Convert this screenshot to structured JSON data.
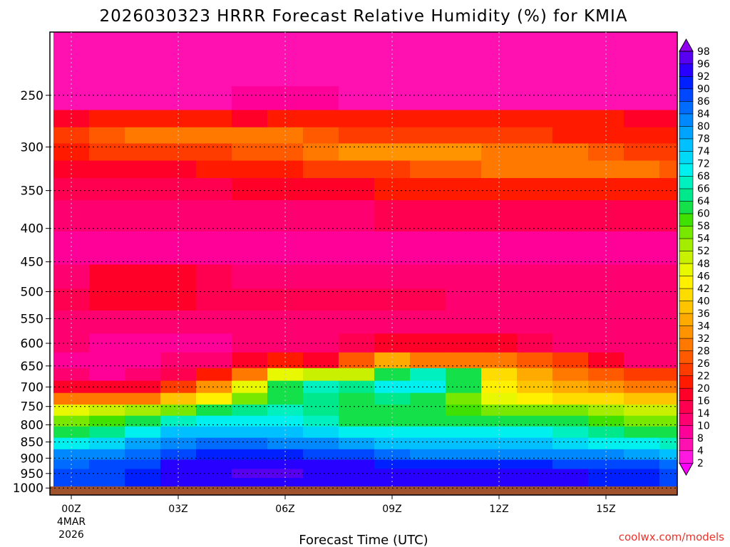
{
  "chart_data": {
    "type": "heatmap",
    "title": "2026030323 HRRR Forecast Relative Humidity (%) for KMIA",
    "xlabel": "Forecast Time (UTC)",
    "ylabel": "",
    "credit": "coolwx.com/models",
    "x_ticks": [
      {
        "hour": 0,
        "label": "00Z",
        "sub1": "4MAR",
        "sub2": "2026"
      },
      {
        "hour": 3,
        "label": "03Z"
      },
      {
        "hour": 6,
        "label": "06Z"
      },
      {
        "hour": 9,
        "label": "09Z"
      },
      {
        "hour": 12,
        "label": "12Z"
      },
      {
        "hour": 15,
        "label": "15Z"
      }
    ],
    "xlim": [
      -0.6,
      17
    ],
    "y_ticks": [
      250,
      300,
      350,
      400,
      450,
      500,
      550,
      600,
      650,
      700,
      750,
      800,
      850,
      900,
      950,
      1000
    ],
    "ylim_hpa": [
      1025,
      200
    ],
    "log_pressure": true,
    "colorbar_levels": [
      2,
      4,
      8,
      10,
      14,
      16,
      20,
      22,
      26,
      28,
      32,
      34,
      36,
      40,
      42,
      46,
      48,
      52,
      54,
      58,
      60,
      64,
      66,
      68,
      72,
      74,
      78,
      80,
      84,
      86,
      90,
      92,
      96,
      98
    ],
    "colorbar_colors": [
      "#ff00ff",
      "#ff18e0",
      "#ff10b0",
      "#ff0098",
      "#ff0070",
      "#ff0050",
      "#ff0028",
      "#ff1a00",
      "#ff3c00",
      "#ff5a00",
      "#ff7800",
      "#ff9400",
      "#ffaa00",
      "#ffc400",
      "#ffdc00",
      "#fff000",
      "#e8f800",
      "#c8f000",
      "#a4ec00",
      "#78e800",
      "#40e000",
      "#14e04a",
      "#00e88c",
      "#00f0c0",
      "#00f0f0",
      "#00d8f8",
      "#00c0ff",
      "#00a4ff",
      "#0088ff",
      "#006cff",
      "#0048ff",
      "#0020ff",
      "#2800ff",
      "#5800f0",
      "#9000f0"
    ],
    "surface_color": "#a0522d",
    "layers": [
      {
        "p": 200,
        "rh": [
          6,
          6,
          6,
          6,
          6,
          6,
          6,
          6,
          6,
          6,
          6,
          6,
          6,
          6,
          6,
          6,
          6,
          6
        ]
      },
      {
        "p": 230,
        "rh": [
          7,
          4,
          5,
          6,
          6,
          6,
          6,
          6,
          6,
          6,
          6,
          6,
          6,
          6,
          6,
          6,
          6,
          6
        ]
      },
      {
        "p": 255,
        "rh": [
          7,
          7,
          7,
          7,
          7,
          8,
          8,
          8,
          7,
          7,
          7,
          7,
          6,
          6,
          6,
          6,
          6,
          6
        ]
      },
      {
        "p": 272,
        "rh": [
          18,
          20,
          20,
          20,
          20,
          19,
          20,
          20,
          20,
          20,
          20,
          20,
          20,
          20,
          20,
          20,
          19,
          18
        ]
      },
      {
        "p": 288,
        "rh": [
          22,
          26,
          29,
          30,
          31,
          30,
          30,
          27,
          25,
          24,
          23,
          23,
          22,
          22,
          21,
          21,
          21,
          21
        ]
      },
      {
        "p": 305,
        "rh": [
          20,
          22,
          23,
          24,
          25,
          26,
          27,
          29,
          32,
          33,
          33,
          32,
          30,
          29,
          28,
          26,
          25,
          23
        ]
      },
      {
        "p": 325,
        "rh": [
          18,
          18,
          19,
          19,
          20,
          21,
          21,
          22,
          23,
          25,
          26,
          27,
          28,
          29,
          29,
          29,
          28,
          27
        ]
      },
      {
        "p": 345,
        "rh": [
          15,
          15,
          15,
          15,
          15,
          16,
          17,
          18,
          19,
          20,
          21,
          21,
          21,
          21,
          21,
          21,
          21,
          20
        ]
      },
      {
        "p": 380,
        "rh": [
          12,
          12,
          12,
          12,
          12,
          13,
          13,
          13,
          13,
          14,
          14,
          14,
          14,
          14,
          14,
          14,
          14,
          14
        ]
      },
      {
        "p": 430,
        "rh": [
          9,
          9,
          9,
          9,
          9,
          9,
          9,
          9,
          9,
          9,
          9,
          9,
          9,
          9,
          9,
          9,
          9,
          9
        ]
      },
      {
        "p": 480,
        "rh": [
          13,
          17,
          17,
          16,
          15,
          12,
          11,
          11,
          11,
          11,
          11,
          10,
          10,
          10,
          10,
          10,
          10,
          10
        ]
      },
      {
        "p": 510,
        "rh": [
          15,
          16,
          16,
          16,
          15,
          15,
          14,
          14,
          14,
          14,
          14,
          13,
          13,
          13,
          13,
          13,
          13,
          13
        ]
      },
      {
        "p": 560,
        "rh": [
          12,
          12,
          11,
          11,
          11,
          11,
          11,
          11,
          11,
          11,
          11,
          11,
          11,
          11,
          11,
          11,
          11,
          11
        ]
      },
      {
        "p": 600,
        "rh": [
          10,
          9,
          9,
          9,
          9,
          10,
          10,
          12,
          14,
          16,
          16,
          16,
          16,
          14,
          12,
          11,
          10,
          10
        ]
      },
      {
        "p": 640,
        "rh": [
          9,
          8,
          8,
          10,
          13,
          18,
          20,
          17,
          26,
          34,
          30,
          29,
          28,
          26,
          23,
          18,
          13,
          11
        ]
      },
      {
        "p": 670,
        "rh": [
          10,
          9,
          10,
          14,
          20,
          30,
          46,
          50,
          48,
          62,
          66,
          60,
          40,
          34,
          30,
          27,
          24,
          22
        ]
      },
      {
        "p": 700,
        "rh": [
          18,
          16,
          18,
          24,
          32,
          46,
          60,
          66,
          64,
          68,
          70,
          62,
          42,
          36,
          34,
          32,
          30,
          28
        ]
      },
      {
        "p": 730,
        "rh": [
          30,
          28,
          30,
          36,
          44,
          56,
          62,
          64,
          62,
          64,
          62,
          56,
          46,
          42,
          40,
          40,
          38,
          36
        ]
      },
      {
        "p": 760,
        "rh": [
          46,
          48,
          52,
          56,
          60,
          64,
          66,
          64,
          60,
          60,
          60,
          58,
          56,
          54,
          54,
          52,
          50,
          48
        ]
      },
      {
        "p": 790,
        "rh": [
          56,
          58,
          62,
          66,
          68,
          70,
          70,
          66,
          62,
          62,
          62,
          62,
          62,
          62,
          60,
          58,
          56,
          54
        ]
      },
      {
        "p": 820,
        "rh": [
          62,
          64,
          70,
          74,
          76,
          76,
          76,
          72,
          70,
          70,
          70,
          68,
          68,
          68,
          66,
          64,
          62,
          60
        ]
      },
      {
        "p": 855,
        "rh": [
          70,
          72,
          78,
          82,
          84,
          84,
          82,
          80,
          78,
          76,
          74,
          74,
          74,
          74,
          72,
          70,
          68,
          66
        ]
      },
      {
        "p": 890,
        "rh": [
          80,
          82,
          84,
          88,
          90,
          90,
          90,
          88,
          86,
          84,
          82,
          82,
          82,
          82,
          80,
          80,
          78,
          76
        ]
      },
      {
        "p": 920,
        "rh": [
          84,
          86,
          88,
          92,
          93,
          94,
          94,
          93,
          92,
          90,
          90,
          90,
          90,
          90,
          88,
          88,
          86,
          84
        ]
      },
      {
        "p": 950,
        "rh": [
          86,
          88,
          90,
          93,
          95,
          96,
          96,
          95,
          95,
          94,
          93,
          93,
          93,
          93,
          92,
          91,
          90,
          88
        ]
      },
      {
        "p": 980,
        "rh": [
          86,
          88,
          90,
          92,
          93,
          94,
          95,
          95,
          94,
          94,
          93,
          93,
          93,
          92,
          92,
          91,
          90,
          89
        ]
      },
      {
        "p": 1010,
        "rh": [
          84,
          86,
          88,
          90,
          91,
          92,
          92,
          92,
          92,
          92,
          92,
          92,
          92,
          91,
          90,
          90,
          89,
          88
        ]
      },
      {
        "p": 1025,
        "rh": [
          84,
          86,
          88,
          90,
          91,
          92,
          92,
          92,
          92,
          92,
          92,
          92,
          92,
          91,
          90,
          90,
          89,
          88
        ]
      }
    ]
  }
}
